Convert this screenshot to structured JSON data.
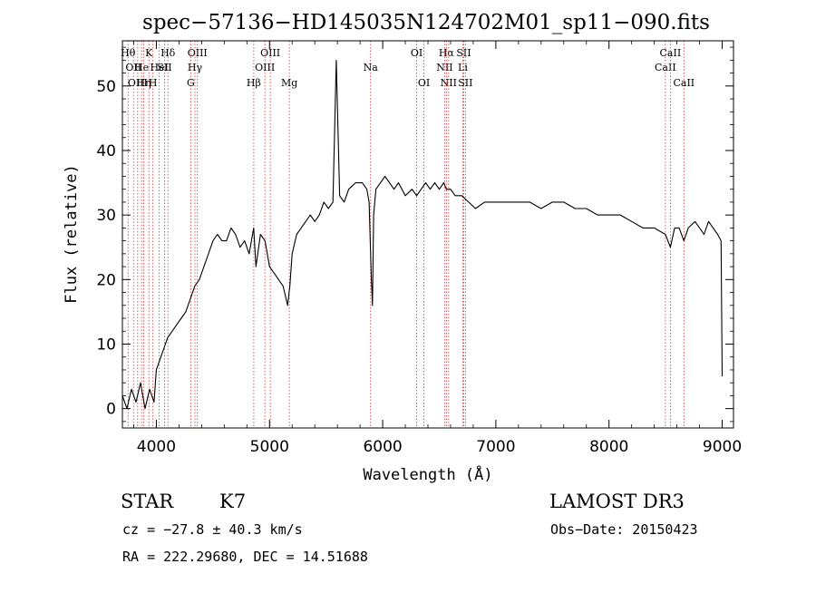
{
  "chart_data": {
    "type": "line",
    "title": "spec−57136−HD145035N124702M01_sp11−090.fits",
    "xlabel": "Wavelength (Å)",
    "ylabel": "Flux (relative)",
    "xlim": [
      3700,
      9100
    ],
    "ylim": [
      -3,
      57
    ],
    "xticks": [
      4000,
      5000,
      6000,
      7000,
      8000,
      9000
    ],
    "yticks": [
      0,
      10,
      20,
      30,
      40,
      50
    ],
    "grid": false,
    "series": [
      {
        "x": [
          3700,
          3740,
          3780,
          3820,
          3860,
          3900,
          3940,
          3980,
          4000,
          4020,
          4060,
          4100,
          4140,
          4180,
          4220,
          4260,
          4300,
          4340,
          4380,
          4420,
          4460,
          4500,
          4540,
          4580,
          4620,
          4660,
          4700,
          4740,
          4780,
          4820,
          4860,
          4880,
          4920,
          4960,
          5000,
          5040,
          5080,
          5120,
          5160,
          5180,
          5200,
          5240,
          5280,
          5320,
          5360,
          5400,
          5440,
          5480,
          5520,
          5560,
          5590,
          5620,
          5660,
          5700,
          5760,
          5820,
          5860,
          5880,
          5900,
          5910,
          5920,
          5940,
          5980,
          6020,
          6060,
          6100,
          6140,
          6200,
          6260,
          6300,
          6340,
          6380,
          6420,
          6460,
          6500,
          6540,
          6563,
          6600,
          6640,
          6700,
          6760,
          6820,
          6900,
          7000,
          7100,
          7200,
          7300,
          7400,
          7500,
          7600,
          7700,
          7800,
          7900,
          8000,
          8100,
          8200,
          8300,
          8400,
          8498,
          8542,
          8580,
          8620,
          8662,
          8700,
          8760,
          8800,
          8840,
          8880,
          8920,
          8960,
          8990,
          9000
        ],
        "y": [
          2,
          0,
          3,
          1,
          4,
          0,
          3,
          1,
          6,
          7,
          9,
          11,
          12,
          13,
          14,
          15,
          17,
          19,
          20,
          22,
          24,
          26,
          27,
          26,
          26,
          28,
          27,
          25,
          26,
          24,
          28,
          22,
          27,
          26,
          22,
          21,
          20,
          19,
          16,
          19,
          24,
          27,
          28,
          29,
          30,
          29,
          30,
          32,
          31,
          32,
          54,
          33,
          32,
          34,
          35,
          35,
          34,
          32,
          20,
          16,
          30,
          34,
          35,
          36,
          35,
          34,
          35,
          33,
          34,
          33,
          34,
          35,
          34,
          35,
          34,
          35,
          34,
          34,
          33,
          33,
          32,
          31,
          32,
          32,
          32,
          32,
          32,
          31,
          32,
          32,
          31,
          31,
          30,
          30,
          30,
          29,
          28,
          28,
          27,
          25,
          28,
          28,
          26,
          28,
          29,
          28,
          27,
          29,
          28,
          27,
          26,
          5
        ]
      }
    ],
    "lines": [
      {
        "x": 3750,
        "label": "Hθ",
        "row": 0
      },
      {
        "x": 3798,
        "label": "OII",
        "row": 1
      },
      {
        "x": 3835,
        "label": "OIII",
        "row": 2
      },
      {
        "x": 3869,
        "label": "He",
        "row": 1
      },
      {
        "x": 3889,
        "label": "Hη",
        "row": 2
      },
      {
        "x": 3934,
        "label": "K",
        "row": 0
      },
      {
        "x": 3970,
        "label": "H",
        "row": 2
      },
      {
        "x": 4026,
        "label": "HeI",
        "row": 1
      },
      {
        "x": 4072,
        "label": "SII",
        "row": 1
      },
      {
        "x": 4102,
        "label": "Hδ",
        "row": 0
      },
      {
        "x": 4304,
        "label": "G",
        "row": 2
      },
      {
        "x": 4341,
        "label": "Hγ",
        "row": 1
      },
      {
        "x": 4363,
        "label": "OIII",
        "row": 0
      },
      {
        "x": 4861,
        "label": "Hβ",
        "row": 2
      },
      {
        "x": 4959,
        "label": "OIII",
        "row": 1
      },
      {
        "x": 5007,
        "label": "OIII",
        "row": 0
      },
      {
        "x": 5175,
        "label": "Mg",
        "row": 2
      },
      {
        "x": 5893,
        "label": "Na",
        "row": 1
      },
      {
        "x": 6300,
        "label": "OI",
        "row": 0
      },
      {
        "x": 6364,
        "label": "OI",
        "row": 2
      },
      {
        "x": 6548,
        "label": "NII",
        "row": 1
      },
      {
        "x": 6563,
        "label": "Hα",
        "row": 0
      },
      {
        "x": 6583,
        "label": "NII",
        "row": 2
      },
      {
        "x": 6708,
        "label": "Li",
        "row": 1
      },
      {
        "x": 6716,
        "label": "SII",
        "row": 0
      },
      {
        "x": 6731,
        "label": "SII",
        "row": 2
      },
      {
        "x": 8498,
        "label": "CaII",
        "row": 1
      },
      {
        "x": 8542,
        "label": "CaII",
        "row": 0
      },
      {
        "x": 8662,
        "label": "CaII",
        "row": 2
      }
    ]
  },
  "info": {
    "class": "STAR",
    "subclass": "K7",
    "survey": "LAMOST DR3",
    "cz": "cz = −27.8 ± 40.3 km/s",
    "obs_date": "Obs−Date: 20150423",
    "coords": "RA = 222.29680, DEC =  14.51688"
  }
}
